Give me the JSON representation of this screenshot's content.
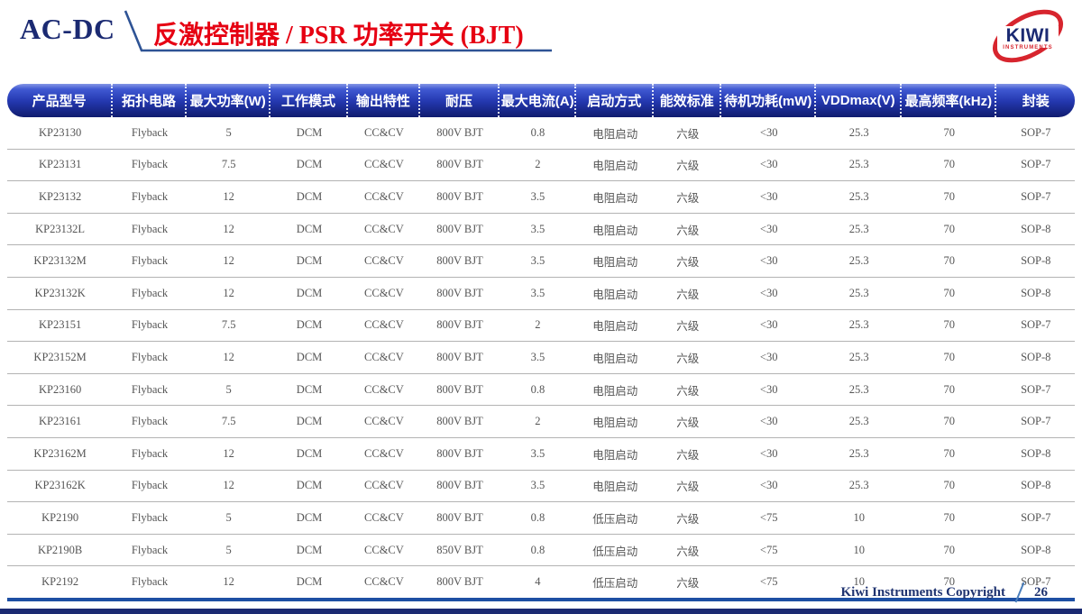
{
  "header": {
    "category": "AC-DC",
    "title": "反激控制器 / PSR 功率开关 (BJT)"
  },
  "logo": {
    "name": "KIWI",
    "subtitle": "INSTRUMENTS"
  },
  "table": {
    "columns": [
      "产品型号",
      "拓扑电路",
      "最大功率(W)",
      "工作模式",
      "输出特性",
      "耐压",
      "最大电流(A)",
      "启动方式",
      "能效标准",
      "待机功耗(mW)",
      "VDDmax(V)",
      "最高频率(kHz)",
      "封装"
    ],
    "rows": [
      [
        "KP23130",
        "Flyback",
        "5",
        "DCM",
        "CC&CV",
        "800V BJT",
        "0.8",
        "电阻启动",
        "六级",
        "<30",
        "25.3",
        "70",
        "SOP-7"
      ],
      [
        "KP23131",
        "Flyback",
        "7.5",
        "DCM",
        "CC&CV",
        "800V BJT",
        "2",
        "电阻启动",
        "六级",
        "<30",
        "25.3",
        "70",
        "SOP-7"
      ],
      [
        "KP23132",
        "Flyback",
        "12",
        "DCM",
        "CC&CV",
        "800V BJT",
        "3.5",
        "电阻启动",
        "六级",
        "<30",
        "25.3",
        "70",
        "SOP-7"
      ],
      [
        "KP23132L",
        "Flyback",
        "12",
        "DCM",
        "CC&CV",
        "800V BJT",
        "3.5",
        "电阻启动",
        "六级",
        "<30",
        "25.3",
        "70",
        "SOP-8"
      ],
      [
        "KP23132M",
        "Flyback",
        "12",
        "DCM",
        "CC&CV",
        "800V BJT",
        "3.5",
        "电阻启动",
        "六级",
        "<30",
        "25.3",
        "70",
        "SOP-8"
      ],
      [
        "KP23132K",
        "Flyback",
        "12",
        "DCM",
        "CC&CV",
        "800V BJT",
        "3.5",
        "电阻启动",
        "六级",
        "<30",
        "25.3",
        "70",
        "SOP-8"
      ],
      [
        "KP23151",
        "Flyback",
        "7.5",
        "DCM",
        "CC&CV",
        "800V BJT",
        "2",
        "电阻启动",
        "六级",
        "<30",
        "25.3",
        "70",
        "SOP-7"
      ],
      [
        "KP23152M",
        "Flyback",
        "12",
        "DCM",
        "CC&CV",
        "800V BJT",
        "3.5",
        "电阻启动",
        "六级",
        "<30",
        "25.3",
        "70",
        "SOP-8"
      ],
      [
        "KP23160",
        "Flyback",
        "5",
        "DCM",
        "CC&CV",
        "800V BJT",
        "0.8",
        "电阻启动",
        "六级",
        "<30",
        "25.3",
        "70",
        "SOP-7"
      ],
      [
        "KP23161",
        "Flyback",
        "7.5",
        "DCM",
        "CC&CV",
        "800V BJT",
        "2",
        "电阻启动",
        "六级",
        "<30",
        "25.3",
        "70",
        "SOP-7"
      ],
      [
        "KP23162M",
        "Flyback",
        "12",
        "DCM",
        "CC&CV",
        "800V BJT",
        "3.5",
        "电阻启动",
        "六级",
        "<30",
        "25.3",
        "70",
        "SOP-8"
      ],
      [
        "KP23162K",
        "Flyback",
        "12",
        "DCM",
        "CC&CV",
        "800V BJT",
        "3.5",
        "电阻启动",
        "六级",
        "<30",
        "25.3",
        "70",
        "SOP-8"
      ],
      [
        "KP2190",
        "Flyback",
        "5",
        "DCM",
        "CC&CV",
        "800V BJT",
        "0.8",
        "低压启动",
        "六级",
        "<75",
        "10",
        "70",
        "SOP-7"
      ],
      [
        "KP2190B",
        "Flyback",
        "5",
        "DCM",
        "CC&CV",
        "850V BJT",
        "0.8",
        "低压启动",
        "六级",
        "<75",
        "10",
        "70",
        "SOP-8"
      ],
      [
        "KP2192",
        "Flyback",
        "12",
        "DCM",
        "CC&CV",
        "800V BJT",
        "4",
        "低压启动",
        "六级",
        "<75",
        "10",
        "70",
        "SOP-7"
      ]
    ]
  },
  "footer": {
    "copyright": "Kiwi Instruments Copyright",
    "page": "26"
  },
  "colors": {
    "accent_red": "#e60012",
    "navy": "#1b2a72",
    "header_gradient_top": "#4059d2",
    "header_gradient_bottom": "#101c6e",
    "table_bottom_border": "#1d4fa3",
    "row_divider": "#b3b3b3",
    "footer_slash_blue": "#4a7ebb"
  }
}
